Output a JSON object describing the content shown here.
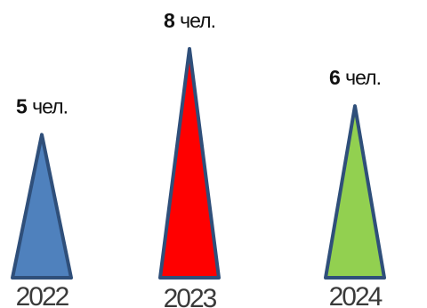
{
  "chart_data": {
    "type": "bar",
    "categories": [
      "2022",
      "2023",
      "2024"
    ],
    "values": [
      5,
      8,
      6
    ],
    "data_labels": [
      {
        "value": "5",
        "unit": "чел."
      },
      {
        "value": "8",
        "unit": "чел."
      },
      {
        "value": "6",
        "unit": "чел."
      }
    ],
    "colors": [
      "#4f81bd",
      "#ff0000",
      "#92d050"
    ],
    "outline_color": "#2f4f7a",
    "ylim": [
      0,
      8.4
    ],
    "grid": false,
    "legend": "none"
  }
}
